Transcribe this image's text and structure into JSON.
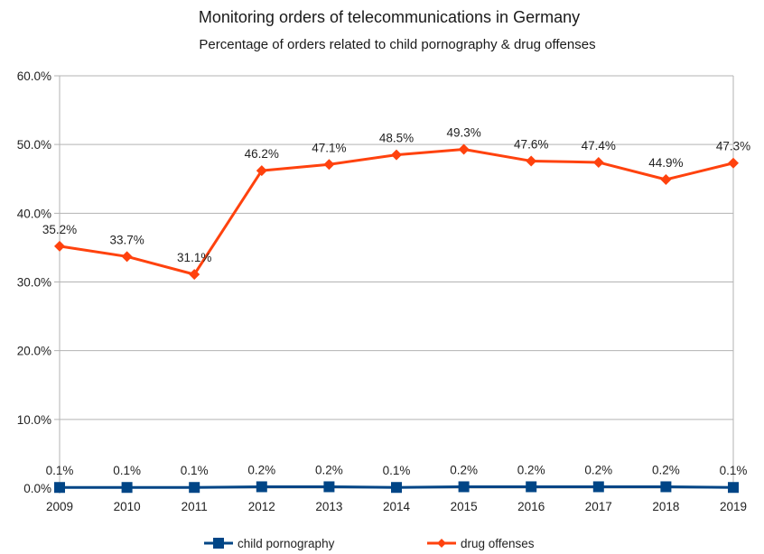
{
  "chart_data": {
    "type": "line",
    "title": "Monitoring orders of telecommunications in Germany",
    "subtitle": "Percentage of orders related to child pornography & drug offenses",
    "xlabel": "",
    "ylabel": "",
    "categories": [
      "2009",
      "2010",
      "2011",
      "2012",
      "2013",
      "2014",
      "2015",
      "2016",
      "2017",
      "2018",
      "2019"
    ],
    "ylim": [
      0,
      60
    ],
    "yticks": [
      0,
      10,
      20,
      30,
      40,
      50,
      60
    ],
    "ytick_labels": [
      "0.0%",
      "10.0%",
      "20.0%",
      "30.0%",
      "40.0%",
      "50.0%",
      "60.0%"
    ],
    "grid": true,
    "legend_position": "bottom",
    "series": [
      {
        "name": "child pornography",
        "color": "#004586",
        "marker": "square",
        "values": [
          0.1,
          0.1,
          0.1,
          0.2,
          0.2,
          0.1,
          0.2,
          0.2,
          0.2,
          0.2,
          0.1
        ],
        "labels": [
          "0.1%",
          "0.1%",
          "0.1%",
          "0.2%",
          "0.2%",
          "0.1%",
          "0.2%",
          "0.2%",
          "0.2%",
          "0.2%",
          "0.1%"
        ]
      },
      {
        "name": "drug offenses",
        "color": "#ff420e",
        "marker": "diamond",
        "values": [
          35.2,
          33.7,
          31.1,
          46.2,
          47.1,
          48.5,
          49.3,
          47.6,
          47.4,
          44.9,
          47.3
        ],
        "labels": [
          "35.2%",
          "33.7%",
          "31.1%",
          "46.2%",
          "47.1%",
          "48.5%",
          "49.3%",
          "47.6%",
          "47.4%",
          "44.9%",
          "47.3%"
        ]
      }
    ]
  }
}
